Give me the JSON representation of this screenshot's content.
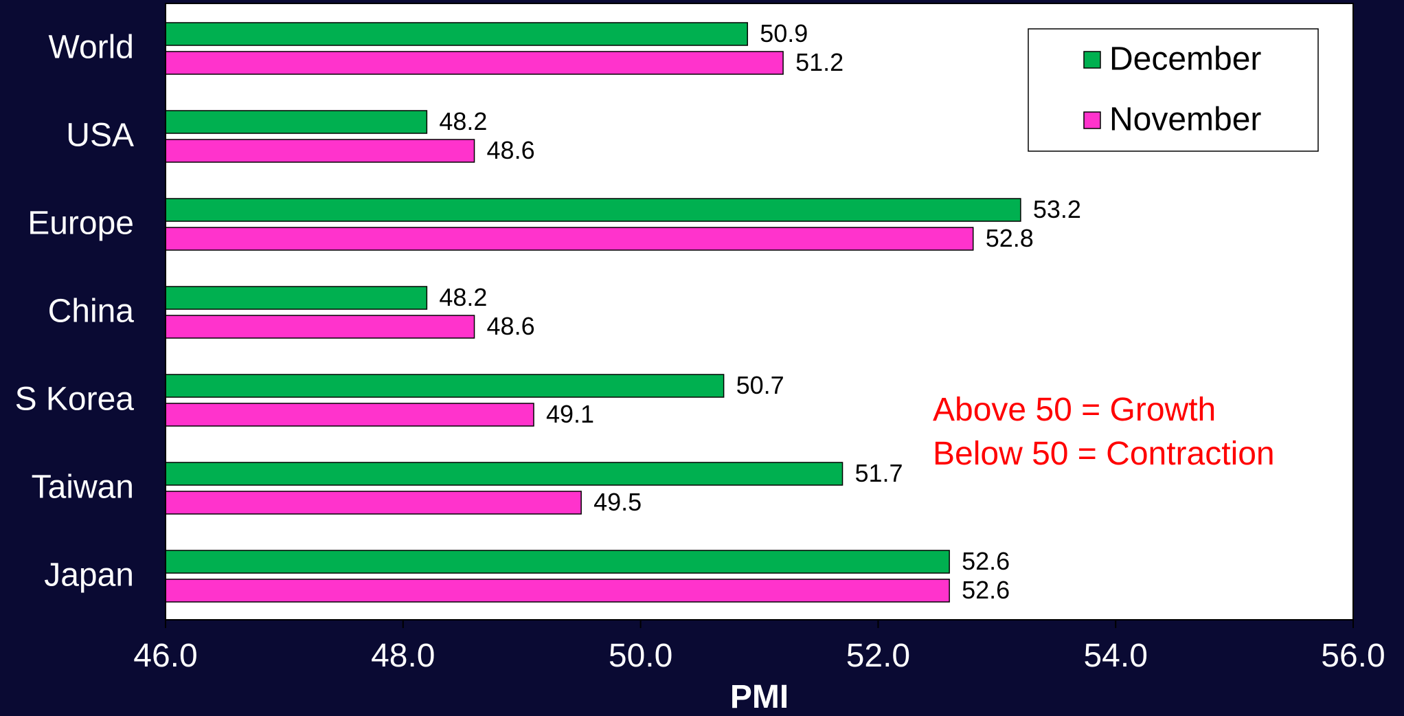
{
  "chart_data": {
    "type": "bar",
    "orientation": "horizontal",
    "categories": [
      "World",
      "USA",
      "Europe",
      "China",
      "S Korea",
      "Taiwan",
      "Japan"
    ],
    "series": [
      {
        "name": "December",
        "values": [
          50.9,
          48.2,
          53.2,
          48.2,
          50.7,
          51.7,
          52.6
        ],
        "labels": [
          "50.9",
          "48.2",
          "53.2",
          "48.2",
          "50.7",
          "51.7",
          "52.6"
        ],
        "color": "#00b050"
      },
      {
        "name": "November",
        "values": [
          51.2,
          48.6,
          52.8,
          48.6,
          49.1,
          49.5,
          52.6
        ],
        "labels": [
          "51.2",
          "48.6",
          "52.8",
          "48.6",
          "49.1",
          "49.5",
          "52.6"
        ],
        "color": "#ff33cc"
      }
    ],
    "xlabel": "PMI",
    "xlim": [
      46.0,
      56.0
    ],
    "xticks": [
      "46.0",
      "48.0",
      "50.0",
      "52.0",
      "54.0",
      "56.0"
    ],
    "grid": false,
    "legend_position": "top-right",
    "annotations": [
      "Above 50 = Growth",
      "Below 50 = Contraction"
    ],
    "annotation_color": "#ff0000"
  },
  "colors": {
    "background": "#0a0a33",
    "plot_area": "#ffffff",
    "text": "#ffffff",
    "label_text": "#000000"
  }
}
